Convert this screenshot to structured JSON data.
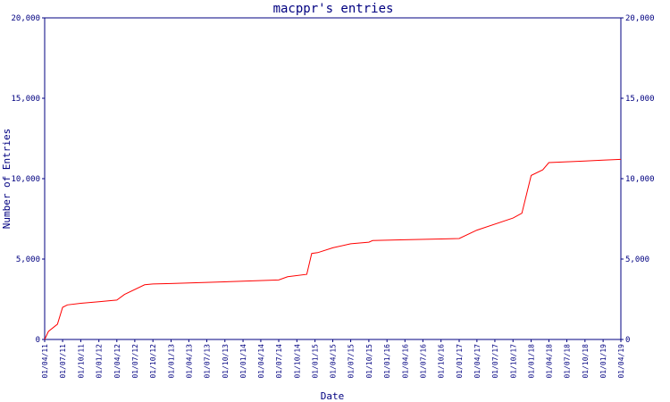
{
  "chart_data": {
    "type": "line",
    "title": "macppr's entries",
    "xlabel": "Date",
    "ylabel": "Number of Entries",
    "ylim": [
      0,
      20000
    ],
    "yticks": [
      {
        "value": 0,
        "label": "0"
      },
      {
        "value": 5000,
        "label": "5,000"
      },
      {
        "value": 10000,
        "label": "10,000"
      },
      {
        "value": 15000,
        "label": "15,000"
      },
      {
        "value": 20000,
        "label": "20,000"
      }
    ],
    "xlim": [
      "2011-04-01",
      "2019-04-01"
    ],
    "xticks": [
      {
        "date": "2011-04-01",
        "label": "01/04/11"
      },
      {
        "date": "2011-07-01",
        "label": "01/07/11"
      },
      {
        "date": "2011-10-01",
        "label": "01/10/11"
      },
      {
        "date": "2012-01-01",
        "label": "01/01/12"
      },
      {
        "date": "2012-04-01",
        "label": "01/04/12"
      },
      {
        "date": "2012-07-01",
        "label": "01/07/12"
      },
      {
        "date": "2012-10-01",
        "label": "01/10/12"
      },
      {
        "date": "2013-01-01",
        "label": "01/01/13"
      },
      {
        "date": "2013-04-01",
        "label": "01/04/13"
      },
      {
        "date": "2013-07-01",
        "label": "01/07/13"
      },
      {
        "date": "2013-10-01",
        "label": "01/10/13"
      },
      {
        "date": "2014-01-01",
        "label": "01/01/14"
      },
      {
        "date": "2014-04-01",
        "label": "01/04/14"
      },
      {
        "date": "2014-07-01",
        "label": "01/07/14"
      },
      {
        "date": "2014-10-01",
        "label": "01/10/14"
      },
      {
        "date": "2015-01-01",
        "label": "01/01/15"
      },
      {
        "date": "2015-04-01",
        "label": "01/04/15"
      },
      {
        "date": "2015-07-01",
        "label": "01/07/15"
      },
      {
        "date": "2015-10-01",
        "label": "01/10/15"
      },
      {
        "date": "2016-01-01",
        "label": "01/01/16"
      },
      {
        "date": "2016-04-01",
        "label": "01/04/16"
      },
      {
        "date": "2016-07-01",
        "label": "01/07/16"
      },
      {
        "date": "2016-10-01",
        "label": "01/10/16"
      },
      {
        "date": "2017-01-01",
        "label": "01/01/17"
      },
      {
        "date": "2017-04-01",
        "label": "01/04/17"
      },
      {
        "date": "2017-07-01",
        "label": "01/07/17"
      },
      {
        "date": "2017-10-01",
        "label": "01/10/17"
      },
      {
        "date": "2018-01-01",
        "label": "01/01/18"
      },
      {
        "date": "2018-04-01",
        "label": "01/04/18"
      },
      {
        "date": "2018-07-01",
        "label": "01/07/18"
      },
      {
        "date": "2018-10-01",
        "label": "01/10/18"
      },
      {
        "date": "2019-01-01",
        "label": "01/01/19"
      },
      {
        "date": "2019-04-01",
        "label": "01/04/19"
      }
    ],
    "grid": false,
    "colors": {
      "line": "#ff0000",
      "axes": "#000080",
      "background": "#ffffff"
    },
    "series": [
      {
        "points": [
          {
            "x": "2011-04-01",
            "y": 0
          },
          {
            "x": "2011-04-20",
            "y": 500
          },
          {
            "x": "2011-06-05",
            "y": 950
          },
          {
            "x": "2011-07-01",
            "y": 2000
          },
          {
            "x": "2011-07-25",
            "y": 2150
          },
          {
            "x": "2011-10-01",
            "y": 2250
          },
          {
            "x": "2012-01-01",
            "y": 2350
          },
          {
            "x": "2012-04-01",
            "y": 2450
          },
          {
            "x": "2012-05-10",
            "y": 2800
          },
          {
            "x": "2012-08-20",
            "y": 3400
          },
          {
            "x": "2012-10-01",
            "y": 3450
          },
          {
            "x": "2013-01-01",
            "y": 3480
          },
          {
            "x": "2013-07-01",
            "y": 3550
          },
          {
            "x": "2014-01-01",
            "y": 3620
          },
          {
            "x": "2014-07-01",
            "y": 3700
          },
          {
            "x": "2014-08-15",
            "y": 3900
          },
          {
            "x": "2014-11-20",
            "y": 4050
          },
          {
            "x": "2014-12-15",
            "y": 5350
          },
          {
            "x": "2015-01-15",
            "y": 5400
          },
          {
            "x": "2015-04-01",
            "y": 5700
          },
          {
            "x": "2015-07-01",
            "y": 5950
          },
          {
            "x": "2015-10-01",
            "y": 6050
          },
          {
            "x": "2015-10-20",
            "y": 6150
          },
          {
            "x": "2016-04-01",
            "y": 6200
          },
          {
            "x": "2016-10-01",
            "y": 6250
          },
          {
            "x": "2017-01-01",
            "y": 6280
          },
          {
            "x": "2017-04-01",
            "y": 6800
          },
          {
            "x": "2017-10-01",
            "y": 7550
          },
          {
            "x": "2017-11-15",
            "y": 7850
          },
          {
            "x": "2018-01-01",
            "y": 10200
          },
          {
            "x": "2018-03-01",
            "y": 10550
          },
          {
            "x": "2018-04-01",
            "y": 11000
          },
          {
            "x": "2018-07-01",
            "y": 11050
          },
          {
            "x": "2018-10-01",
            "y": 11100
          },
          {
            "x": "2019-01-01",
            "y": 11150
          },
          {
            "x": "2019-04-01",
            "y": 11200
          }
        ]
      }
    ]
  }
}
